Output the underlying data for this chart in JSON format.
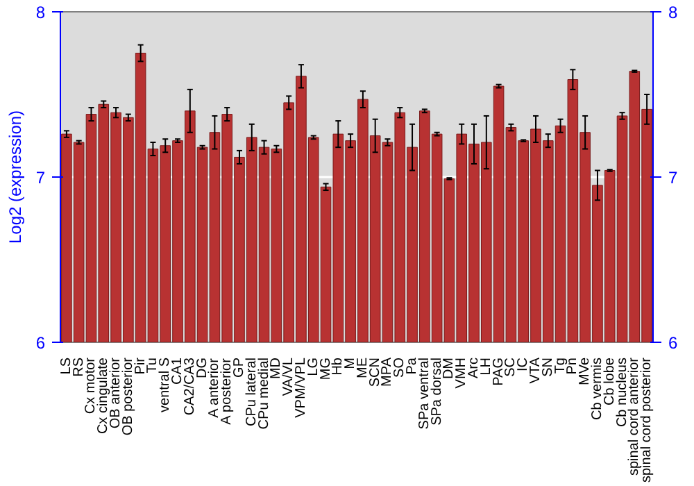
{
  "chart_data": {
    "type": "bar",
    "ylabel": "Log2 (expression)",
    "categories": [
      "LS",
      "RS",
      "Cx motor",
      "Cx cingulate",
      "OB anterior",
      "OB posterior",
      "Pir",
      "Tu",
      "ventral S",
      "CA1",
      "CA2/CA3",
      "DG",
      "A anterior",
      "A posterior",
      "GP",
      "CPu lateral",
      "CPu medial",
      "MD",
      "VA/VL",
      "VPM/VPL",
      "LG",
      "MG",
      "Hb",
      "M",
      "ME",
      "SCN",
      "MPA",
      "SO",
      "Pa",
      "SPa ventral",
      "SPa dorsal",
      "DM",
      "VMH",
      "Arc",
      "LH",
      "PAG",
      "SC",
      "IC",
      "VTA",
      "SN",
      "Tg",
      "Pn",
      "MVe",
      "Cb vermis",
      "Cb lobe",
      "Cb nucleus",
      "spinal cord anterior",
      "spinal cord posterior"
    ],
    "values": [
      7.26,
      7.21,
      7.38,
      7.44,
      7.39,
      7.36,
      7.75,
      7.17,
      7.19,
      7.22,
      7.4,
      7.18,
      7.27,
      7.38,
      7.12,
      7.24,
      7.18,
      7.17,
      7.45,
      7.61,
      7.24,
      6.94,
      7.26,
      7.22,
      7.47,
      7.25,
      7.21,
      7.39,
      7.18,
      7.4,
      7.26,
      6.99,
      7.26,
      7.2,
      7.21,
      7.55,
      7.3,
      7.22,
      7.29,
      7.22,
      7.31,
      7.59,
      7.27,
      6.95,
      7.04,
      7.37,
      7.64,
      7.41
    ],
    "errors": [
      0.02,
      0.01,
      0.04,
      0.02,
      0.03,
      0.02,
      0.05,
      0.04,
      0.04,
      0.01,
      0.13,
      0.01,
      0.1,
      0.04,
      0.04,
      0.08,
      0.04,
      0.02,
      0.04,
      0.07,
      0.01,
      0.02,
      0.08,
      0.04,
      0.05,
      0.1,
      0.02,
      0.03,
      0.14,
      0.01,
      0.01,
      0.005,
      0.06,
      0.12,
      0.16,
      0.01,
      0.02,
      0.005,
      0.08,
      0.04,
      0.04,
      0.06,
      0.1,
      0.09,
      0.005,
      0.02,
      0.005,
      0.09
    ],
    "color": "#b83232",
    "ylim": [
      6,
      8
    ],
    "yticks": [
      6,
      7,
      8
    ],
    "y2lim": [
      6,
      8
    ],
    "y2ticks": [
      6,
      7,
      8
    ],
    "grid": "y"
  }
}
